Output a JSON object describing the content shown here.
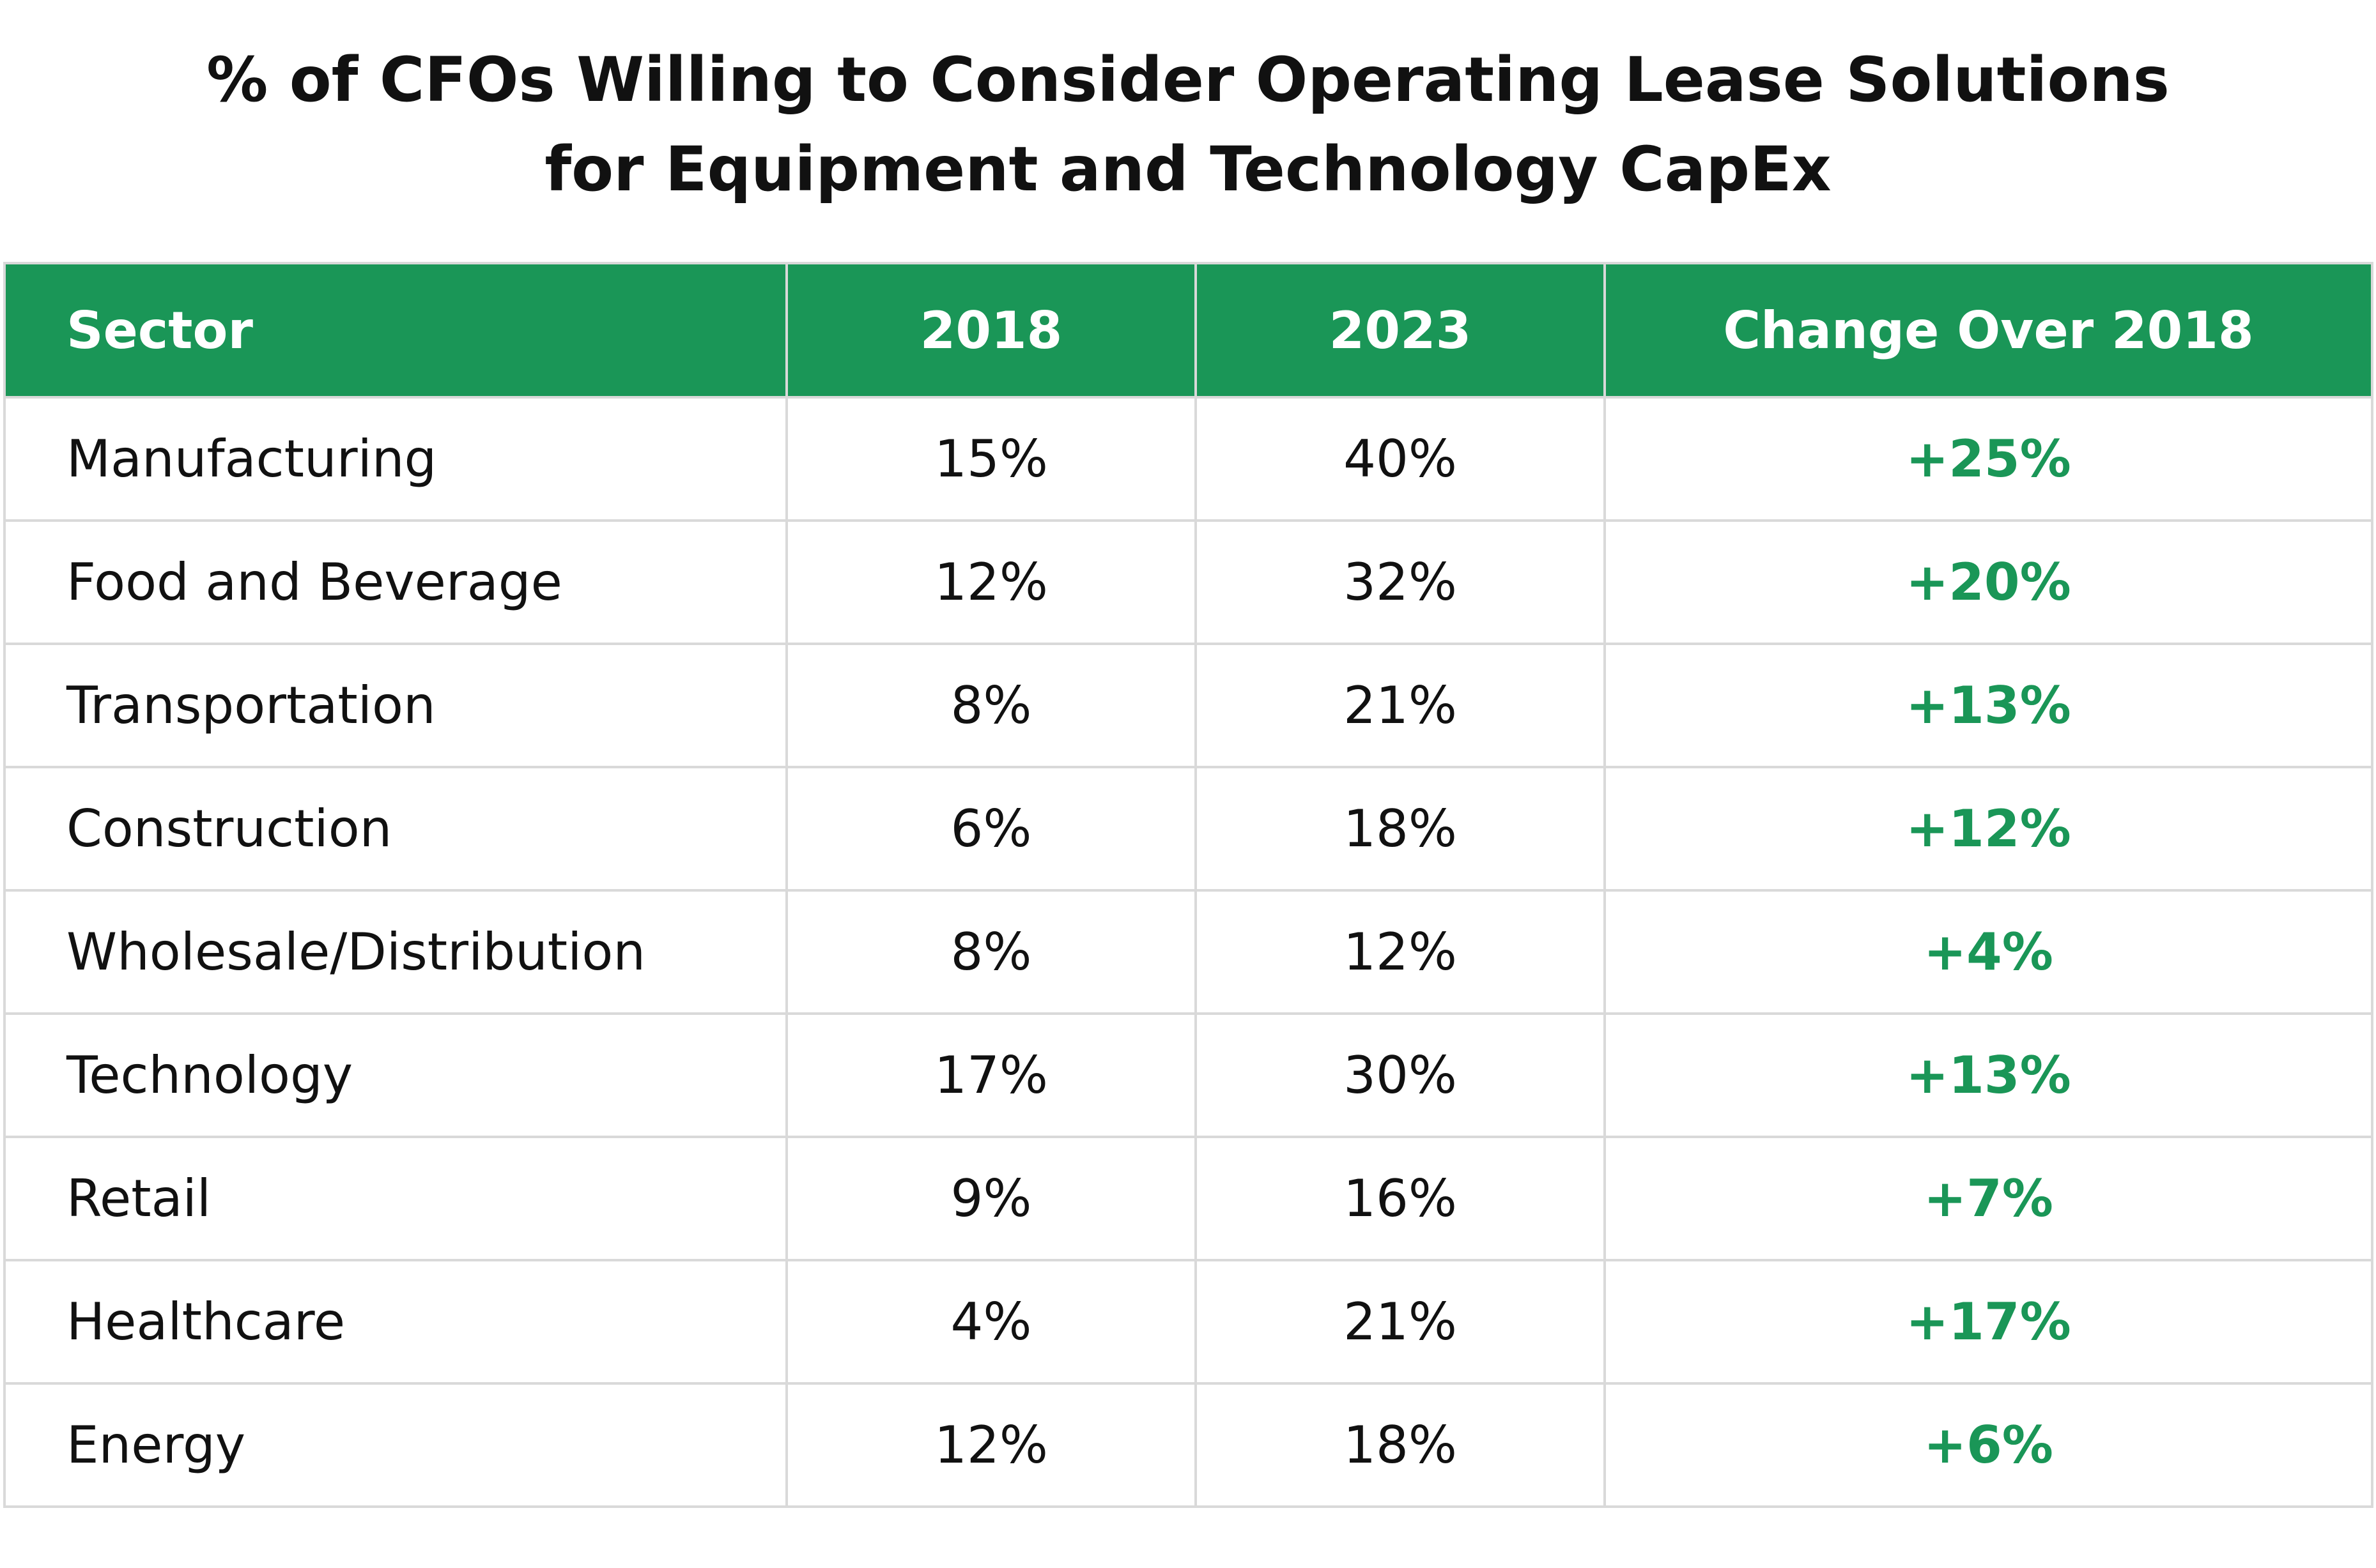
{
  "chart_data": {
    "type": "table",
    "title": [
      "% of CFOs Willing to Consider Operating Lease Solutions",
      "for Equipment and Technology CapEx"
    ],
    "columns": [
      "Sector",
      "2018",
      "2023",
      "Change Over 2018"
    ],
    "rows": [
      {
        "sector": "Manufacturing",
        "y2018": "15%",
        "y2023": "40%",
        "change": "+25%"
      },
      {
        "sector": "Food and Beverage",
        "y2018": "12%",
        "y2023": "32%",
        "change": "+20%"
      },
      {
        "sector": "Transportation",
        "y2018": "8%",
        "y2023": "21%",
        "change": "+13%"
      },
      {
        "sector": "Construction",
        "y2018": "6%",
        "y2023": "18%",
        "change": "+12%"
      },
      {
        "sector": "Wholesale/Distribution",
        "y2018": "8%",
        "y2023": "12%",
        "change": "+4%"
      },
      {
        "sector": "Technology",
        "y2018": "17%",
        "y2023": "30%",
        "change": "+13%"
      },
      {
        "sector": "Retail",
        "y2018": "9%",
        "y2023": "16%",
        "change": "+7%"
      },
      {
        "sector": "Healthcare",
        "y2018": "4%",
        "y2023": "21%",
        "change": "+17%"
      },
      {
        "sector": "Energy",
        "y2018": "12%",
        "y2023": "18%",
        "change": "+6%"
      }
    ],
    "colors": {
      "header_bg": "#1a9657",
      "header_text": "#ffffff",
      "change_text": "#1a9657",
      "grid": "#d9d9d9"
    }
  }
}
